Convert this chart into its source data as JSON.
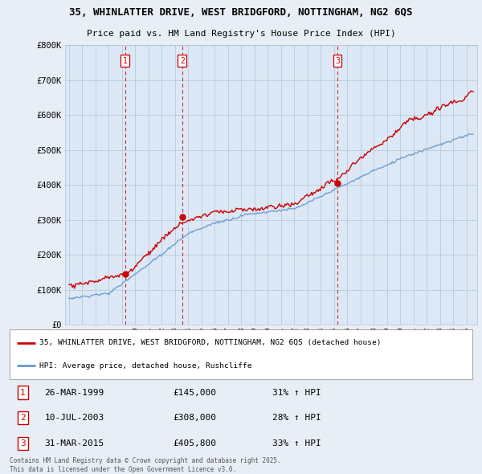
{
  "title1": "35, WHINLATTER DRIVE, WEST BRIDGFORD, NOTTINGHAM, NG2 6QS",
  "title2": "Price paid vs. HM Land Registry's House Price Index (HPI)",
  "bg_color": "#e8eef5",
  "plot_bg": "#dce8f5",
  "sale_years": [
    1999.23,
    2003.54,
    2015.25
  ],
  "sale_prices": [
    145000,
    308000,
    405800
  ],
  "sale_labels": [
    "1",
    "2",
    "3"
  ],
  "red_line_color": "#cc0000",
  "blue_line_color": "#6699cc",
  "ylim": [
    0,
    800000
  ],
  "yticks": [
    0,
    100000,
    200000,
    300000,
    400000,
    500000,
    600000,
    700000,
    800000
  ],
  "ytick_labels": [
    "£0",
    "£100K",
    "£200K",
    "£300K",
    "£400K",
    "£500K",
    "£600K",
    "£700K",
    "£800K"
  ],
  "legend_red": "35, WHINLATTER DRIVE, WEST BRIDGFORD, NOTTINGHAM, NG2 6QS (detached house)",
  "legend_blue": "HPI: Average price, detached house, Rushcliffe",
  "table_rows": [
    [
      "1",
      "26-MAR-1999",
      "£145,000",
      "31% ↑ HPI"
    ],
    [
      "2",
      "10-JUL-2003",
      "£308,000",
      "28% ↑ HPI"
    ],
    [
      "3",
      "31-MAR-2015",
      "£405,800",
      "33% ↑ HPI"
    ]
  ],
  "footnote": "Contains HM Land Registry data © Crown copyright and database right 2025.\nThis data is licensed under the Open Government Licence v3.0.",
  "grid_color": "#b0c4d8",
  "vline_color": "#cc0000"
}
